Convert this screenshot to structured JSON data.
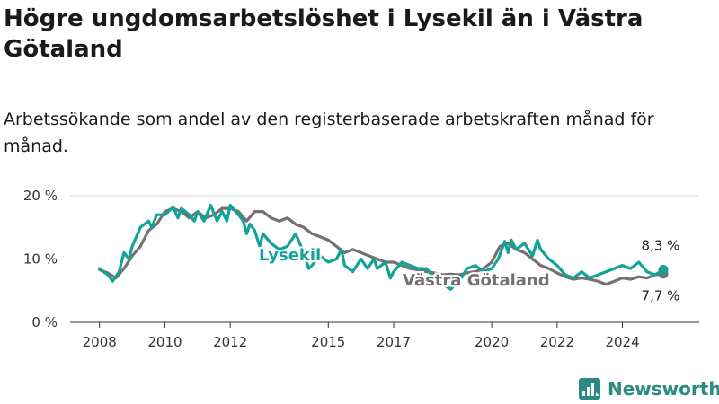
{
  "title": "Högre ungdomsarbetslöshet i Lysekil än i Västra Götaland",
  "subtitle": "Arbetssökande som andel av den registerbaserade arbetskraften månad för månad.",
  "brand": "Newsworthy",
  "colors": {
    "lysekil": "#11a298",
    "vastra": "#767171",
    "grid": "#d9d9d9"
  },
  "chart_data": {
    "type": "line",
    "y_unit": "%",
    "ylim": [
      0,
      20
    ],
    "y_ticks": [
      {
        "value": 0,
        "label": "0 %"
      },
      {
        "value": 10,
        "label": "10 %"
      },
      {
        "value": 20,
        "label": "20 %"
      }
    ],
    "x_ticks": [
      {
        "value": 2008,
        "label": "2008"
      },
      {
        "value": 2010,
        "label": "2010"
      },
      {
        "value": 2012,
        "label": "2012"
      },
      {
        "value": 2015,
        "label": "2015"
      },
      {
        "value": 2017,
        "label": "2017"
      },
      {
        "value": 2020,
        "label": "2020"
      },
      {
        "value": 2022,
        "label": "2022"
      },
      {
        "value": 2024,
        "label": "2024"
      }
    ],
    "grid": "horizontal",
    "series": [
      {
        "name": "Västra Götaland",
        "color": "#767171",
        "end_label": "7,7 %",
        "points": [
          [
            2008.0,
            8.3
          ],
          [
            2008.25,
            7.8
          ],
          [
            2008.5,
            7.0
          ],
          [
            2008.75,
            8.5
          ],
          [
            2009.0,
            10.5
          ],
          [
            2009.25,
            12.0
          ],
          [
            2009.5,
            14.5
          ],
          [
            2009.75,
            15.5
          ],
          [
            2010.0,
            17.5
          ],
          [
            2010.25,
            18.0
          ],
          [
            2010.5,
            17.5
          ],
          [
            2010.75,
            16.5
          ],
          [
            2011.0,
            17.5
          ],
          [
            2011.25,
            16.5
          ],
          [
            2011.5,
            17.0
          ],
          [
            2011.75,
            18.0
          ],
          [
            2012.0,
            18.0
          ],
          [
            2012.25,
            17.5
          ],
          [
            2012.5,
            16.0
          ],
          [
            2012.75,
            17.5
          ],
          [
            2013.0,
            17.5
          ],
          [
            2013.25,
            16.5
          ],
          [
            2013.5,
            16.0
          ],
          [
            2013.75,
            16.5
          ],
          [
            2014.0,
            15.5
          ],
          [
            2014.25,
            15.0
          ],
          [
            2014.5,
            14.0
          ],
          [
            2014.75,
            13.5
          ],
          [
            2015.0,
            13.0
          ],
          [
            2015.25,
            12.0
          ],
          [
            2015.5,
            11.0
          ],
          [
            2015.75,
            11.5
          ],
          [
            2016.0,
            11.0
          ],
          [
            2016.25,
            10.5
          ],
          [
            2016.5,
            10.0
          ],
          [
            2016.75,
            9.5
          ],
          [
            2017.0,
            9.5
          ],
          [
            2017.25,
            9.0
          ],
          [
            2017.5,
            8.5
          ],
          [
            2017.75,
            8.3
          ],
          [
            2018.0,
            8.0
          ],
          [
            2018.25,
            7.8
          ],
          [
            2018.5,
            7.5
          ],
          [
            2018.75,
            7.6
          ],
          [
            2019.0,
            7.5
          ],
          [
            2019.25,
            7.8
          ],
          [
            2019.5,
            8.0
          ],
          [
            2019.75,
            8.5
          ],
          [
            2020.0,
            9.5
          ],
          [
            2020.25,
            12.0
          ],
          [
            2020.5,
            12.5
          ],
          [
            2020.75,
            11.5
          ],
          [
            2021.0,
            11.0
          ],
          [
            2021.25,
            10.0
          ],
          [
            2021.5,
            9.0
          ],
          [
            2021.75,
            8.5
          ],
          [
            2022.0,
            7.8
          ],
          [
            2022.25,
            7.2
          ],
          [
            2022.5,
            6.8
          ],
          [
            2022.75,
            7.0
          ],
          [
            2023.0,
            6.8
          ],
          [
            2023.25,
            6.5
          ],
          [
            2023.5,
            6.0
          ],
          [
            2023.75,
            6.5
          ],
          [
            2024.0,
            7.0
          ],
          [
            2024.25,
            6.8
          ],
          [
            2024.5,
            7.2
          ],
          [
            2024.75,
            7.0
          ],
          [
            2025.0,
            7.5
          ],
          [
            2025.25,
            7.7
          ]
        ]
      },
      {
        "name": "Lysekil",
        "color": "#11a298",
        "end_label": "8,3 %",
        "points": [
          [
            2008.0,
            8.5
          ],
          [
            2008.25,
            7.5
          ],
          [
            2008.4,
            6.5
          ],
          [
            2008.6,
            8.0
          ],
          [
            2008.75,
            11.0
          ],
          [
            2008.9,
            10.0
          ],
          [
            2009.0,
            12.0
          ],
          [
            2009.25,
            15.0
          ],
          [
            2009.5,
            16.0
          ],
          [
            2009.6,
            15.0
          ],
          [
            2009.75,
            17.0
          ],
          [
            2010.0,
            17.0
          ],
          [
            2010.25,
            18.2
          ],
          [
            2010.4,
            16.5
          ],
          [
            2010.5,
            18.0
          ],
          [
            2010.75,
            17.0
          ],
          [
            2010.9,
            16.0
          ],
          [
            2011.0,
            17.5
          ],
          [
            2011.2,
            16.0
          ],
          [
            2011.4,
            18.5
          ],
          [
            2011.6,
            16.0
          ],
          [
            2011.75,
            17.5
          ],
          [
            2011.9,
            16.0
          ],
          [
            2012.0,
            18.5
          ],
          [
            2012.25,
            17.0
          ],
          [
            2012.4,
            16.0
          ],
          [
            2012.5,
            14.0
          ],
          [
            2012.6,
            15.5
          ],
          [
            2012.75,
            14.5
          ],
          [
            2012.9,
            12.0
          ],
          [
            2013.0,
            14.0
          ],
          [
            2013.25,
            12.5
          ],
          [
            2013.5,
            11.5
          ],
          [
            2013.75,
            12.0
          ],
          [
            2014.0,
            14.0
          ],
          [
            2014.25,
            11.0
          ],
          [
            2014.4,
            8.5
          ],
          [
            2014.5,
            9.0
          ],
          [
            2014.75,
            10.5
          ],
          [
            2015.0,
            9.5
          ],
          [
            2015.25,
            10.0
          ],
          [
            2015.4,
            11.5
          ],
          [
            2015.5,
            9.0
          ],
          [
            2015.75,
            8.0
          ],
          [
            2016.0,
            10.0
          ],
          [
            2016.2,
            8.5
          ],
          [
            2016.4,
            10.0
          ],
          [
            2016.5,
            8.5
          ],
          [
            2016.75,
            9.5
          ],
          [
            2016.9,
            7.0
          ],
          [
            2017.0,
            8.0
          ],
          [
            2017.25,
            9.5
          ],
          [
            2017.5,
            9.0
          ],
          [
            2017.75,
            8.5
          ],
          [
            2018.0,
            8.5
          ],
          [
            2018.25,
            7.0
          ],
          [
            2018.5,
            6.0
          ],
          [
            2018.75,
            5.2
          ],
          [
            2019.0,
            6.5
          ],
          [
            2019.25,
            8.5
          ],
          [
            2019.5,
            9.0
          ],
          [
            2019.75,
            8.0
          ],
          [
            2020.0,
            8.5
          ],
          [
            2020.2,
            10.0
          ],
          [
            2020.4,
            12.8
          ],
          [
            2020.5,
            11.0
          ],
          [
            2020.6,
            13.0
          ],
          [
            2020.75,
            11.5
          ],
          [
            2021.0,
            12.5
          ],
          [
            2021.25,
            10.5
          ],
          [
            2021.4,
            13.0
          ],
          [
            2021.5,
            11.5
          ],
          [
            2021.75,
            10.0
          ],
          [
            2022.0,
            9.0
          ],
          [
            2022.25,
            7.5
          ],
          [
            2022.5,
            7.0
          ],
          [
            2022.75,
            8.0
          ],
          [
            2023.0,
            7.0
          ],
          [
            2023.25,
            7.5
          ],
          [
            2023.5,
            8.0
          ],
          [
            2023.75,
            8.5
          ],
          [
            2024.0,
            9.0
          ],
          [
            2024.25,
            8.5
          ],
          [
            2024.5,
            9.5
          ],
          [
            2024.75,
            8.0
          ],
          [
            2025.0,
            7.5
          ],
          [
            2025.25,
            8.3
          ]
        ]
      }
    ],
    "inline_labels": [
      {
        "text": "Lysekil",
        "series": "Lysekil"
      },
      {
        "text": "Västra Götaland",
        "series": "Västra Götaland"
      }
    ]
  }
}
